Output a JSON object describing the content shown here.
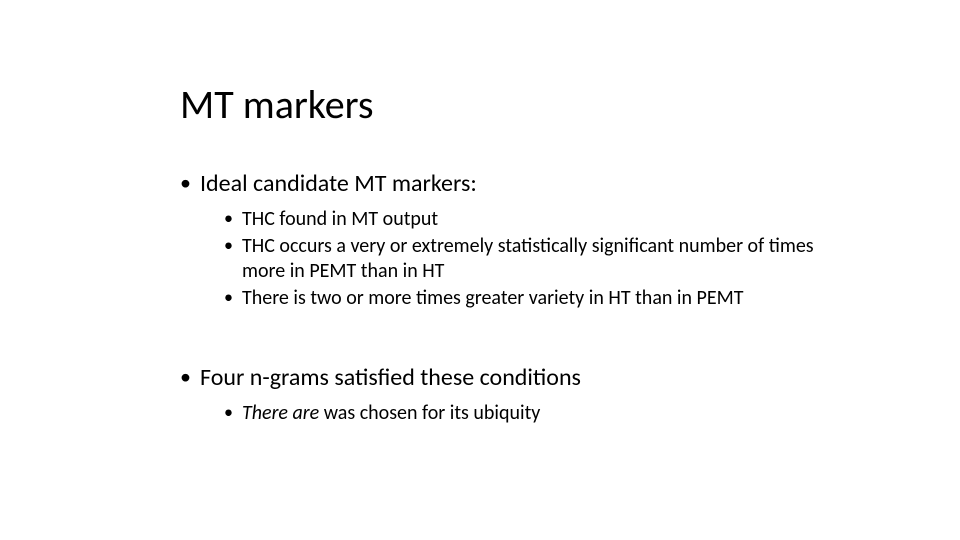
{
  "slide": {
    "title": "MT markers",
    "title_fontsize": 40,
    "body_fontsize_l1": 24,
    "body_fontsize_l2": 20,
    "font_family": "Calibri",
    "text_color": "#000000",
    "background_color": "#ffffff",
    "bullets": {
      "level1": [
        {
          "text": "Ideal candidate MT markers:",
          "children": [
            "THC found in MT output",
            "THC occurs a very or extremely statistically significant number of times more in PEMT than in HT",
            "There is two or more times greater variety in HT than in PEMT"
          ]
        },
        {
          "text": "Four n-grams satisfied these conditions",
          "children_italic_first_words": true,
          "children": [
            {
              "italic_part": "There are",
              "rest": " was chosen for its ubiquity"
            }
          ]
        }
      ]
    }
  }
}
